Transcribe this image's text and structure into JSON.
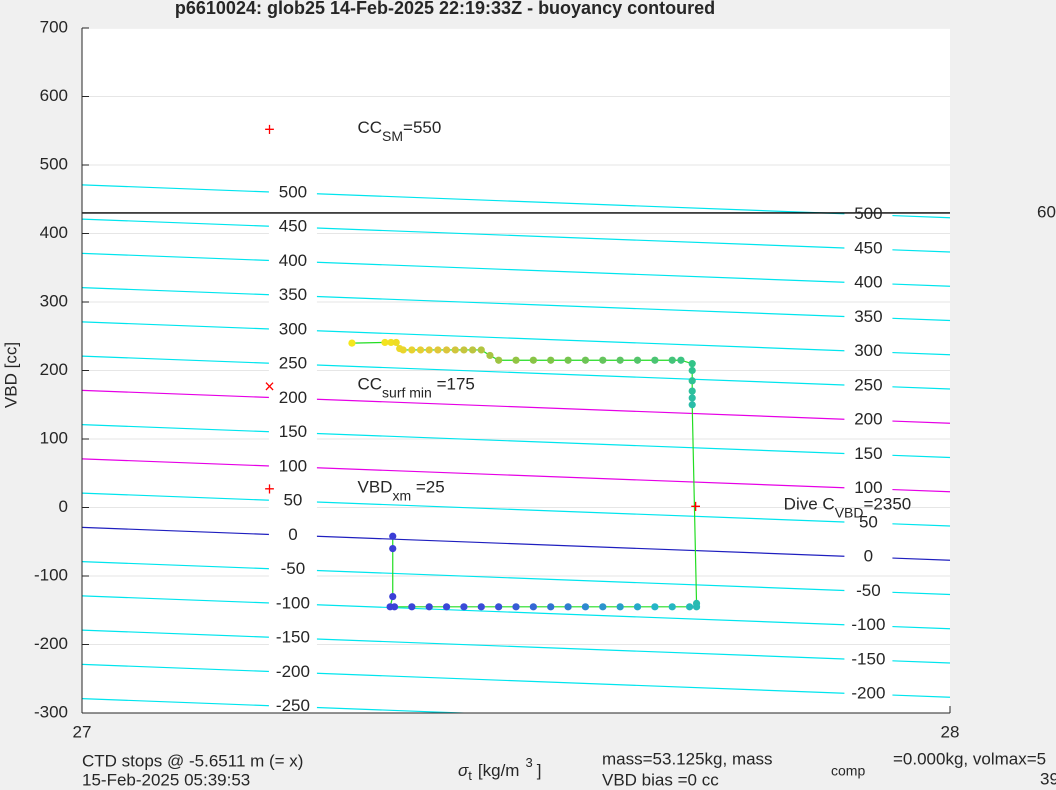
{
  "chart_data": {
    "type": "scatter",
    "title": "p6610024: glob25 14-Feb-2025 22:19:33Z - buoyancy contoured",
    "ylabel": "VBD [cc]",
    "xlabel": {
      "symbol": "σ",
      "sub": "t",
      "unit": "[kg/m",
      "sup": "3",
      "close": "]"
    },
    "xlim": [
      27,
      28
    ],
    "xticks": [
      27,
      28
    ],
    "ylim": [
      -300,
      700
    ],
    "yticks": [
      -300,
      -200,
      -100,
      0,
      100,
      200,
      300,
      400,
      500,
      600,
      700
    ],
    "grid": true,
    "contours": [
      {
        "level": 500,
        "y": [
          471,
          423
        ],
        "color": "#00e5ee"
      },
      {
        "level": 450,
        "y": [
          421,
          373
        ],
        "color": "#00e5ee"
      },
      {
        "level": 400,
        "y": [
          371,
          323
        ],
        "color": "#00e5ee"
      },
      {
        "level": 350,
        "y": [
          321,
          273
        ],
        "color": "#00e5ee"
      },
      {
        "level": 300,
        "y": [
          271,
          223
        ],
        "color": "#00e5ee"
      },
      {
        "level": 250,
        "y": [
          221,
          173
        ],
        "color": "#00e5ee"
      },
      {
        "level": 200,
        "y": [
          171,
          123
        ],
        "color": "#e600e6"
      },
      {
        "level": 150,
        "y": [
          121,
          73
        ],
        "color": "#00e5ee"
      },
      {
        "level": 100,
        "y": [
          71,
          23
        ],
        "color": "#e600e6"
      },
      {
        "level": 50,
        "y": [
          21,
          -27
        ],
        "color": "#00e5ee"
      },
      {
        "level": 0,
        "y": [
          -29,
          -77
        ],
        "color": "#1f1fbf"
      },
      {
        "level": -50,
        "y": [
          -79,
          -127
        ],
        "color": "#00e5ee"
      },
      {
        "level": -100,
        "y": [
          -129,
          -177
        ],
        "color": "#00e5ee"
      },
      {
        "level": -150,
        "y": [
          -179,
          -227
        ],
        "color": "#00e5ee"
      },
      {
        "level": -200,
        "y": [
          -229,
          -277
        ],
        "color": "#00e5ee"
      },
      {
        "level": -250,
        "y": [
          -279,
          -327
        ],
        "color": "#00e5ee"
      }
    ],
    "hline": {
      "y": 430,
      "color": "#000000",
      "label": "60"
    },
    "trace": {
      "line_color": "#22dd22",
      "colormap": [
        "#f5e71c",
        "#e0c53a",
        "#7fc447",
        "#2ec48c",
        "#25b4c8",
        "#3a4cd8",
        "#3b3dd6"
      ],
      "x": [
        27.311,
        27.349,
        27.356,
        27.362,
        27.366,
        27.37,
        27.38,
        27.39,
        27.4,
        27.41,
        27.42,
        27.43,
        27.44,
        27.45,
        27.46,
        27.47,
        27.48,
        27.5,
        27.52,
        27.54,
        27.56,
        27.58,
        27.6,
        27.62,
        27.64,
        27.66,
        27.68,
        27.69,
        27.703,
        27.703,
        27.703,
        27.703,
        27.703,
        27.703,
        27.708,
        27.708,
        27.7,
        27.68,
        27.66,
        27.64,
        27.62,
        27.6,
        27.58,
        27.56,
        27.54,
        27.52,
        27.5,
        27.48,
        27.46,
        27.44,
        27.42,
        27.4,
        27.38,
        27.36,
        27.355,
        27.358,
        27.358,
        27.358
      ],
      "y": [
        240,
        241,
        241,
        241,
        232,
        230,
        230,
        230,
        230,
        230,
        230,
        230,
        230,
        230,
        230,
        222,
        215,
        215,
        215,
        215,
        215,
        215,
        215,
        215,
        215,
        215,
        215,
        215,
        210,
        200,
        185,
        170,
        160,
        150,
        -140,
        -145,
        -145,
        -145,
        -145,
        -145,
        -145,
        -145,
        -145,
        -145,
        -145,
        -145,
        -145,
        -145,
        -145,
        -145,
        -145,
        -145,
        -145,
        -145,
        -145,
        -130,
        -60,
        -42
      ]
    },
    "markers": [
      {
        "x": 27.216,
        "y": 550,
        "symbol": "+",
        "color": "#ff0000",
        "label": {
          "base": "CC",
          "sub": "SM",
          "rest": "=550"
        }
      },
      {
        "x": 27.216,
        "y": 175,
        "symbol": "×",
        "color": "#ff0000",
        "label": {
          "base": "CC",
          "sub": "surf min",
          "rest": " =175"
        }
      },
      {
        "x": 27.216,
        "y": 25,
        "symbol": "+",
        "color": "#ff0000",
        "label": {
          "base": "VBD",
          "sub": "xm",
          "rest": " =25"
        }
      },
      {
        "x": 27.707,
        "y": 0,
        "symbol": "+",
        "color": "#ff0000",
        "label": {
          "base": "Dive C",
          "sub": "VBD",
          "rest": "=2350"
        }
      }
    ],
    "footer": {
      "left": [
        "CTD stops @ -5.6511 m (= x)",
        "15-Feb-2025 05:39:53"
      ],
      "mid": [
        "mass=53.125kg, mass",
        "VBD bias =0 cc"
      ],
      "comp_sub": "comp",
      "right": [
        "=0.000kg, volmax=5",
        "39"
      ]
    }
  }
}
